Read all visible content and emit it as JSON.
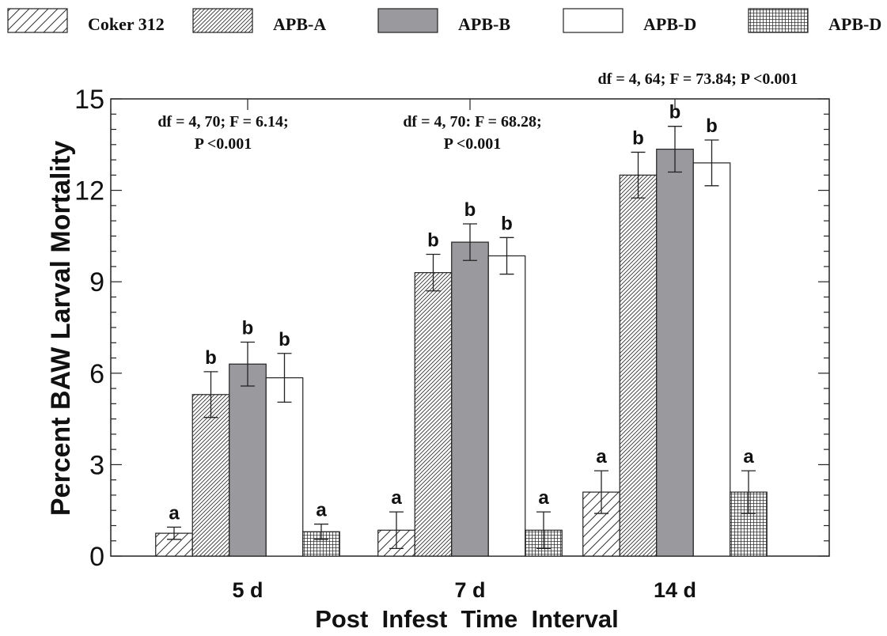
{
  "chart_data": {
    "type": "bar",
    "xlabel": "Post  Infest  Time  Interval",
    "ylabel": "Percent BAW Larval Mortality",
    "ylim": [
      0,
      15
    ],
    "yticks": [
      "0",
      "3",
      "6",
      "9",
      "12",
      "15"
    ],
    "grid": false,
    "legend_position": "top",
    "categories": [
      "5 d",
      "7 d",
      "14 d"
    ],
    "series": [
      {
        "name": "Coker 312",
        "pattern": "sparse-hatch",
        "values": [
          0.75,
          0.85,
          2.1
        ],
        "errors": [
          0.2,
          0.6,
          0.7
        ],
        "letters": [
          "a",
          "a",
          "a"
        ]
      },
      {
        "name": "APB-A",
        "pattern": "dense-hatch",
        "values": [
          5.3,
          9.3,
          12.5
        ],
        "errors": [
          0.75,
          0.6,
          0.75
        ],
        "letters": [
          "b",
          "b",
          "b"
        ]
      },
      {
        "name": "APB-B",
        "pattern": "solid",
        "color": "#9a9a9e",
        "values": [
          6.3,
          10.3,
          13.35
        ],
        "errors": [
          0.72,
          0.6,
          0.75
        ],
        "letters": [
          "b",
          "b",
          "b"
        ]
      },
      {
        "name": "APB-D",
        "pattern": "open",
        "values": [
          5.85,
          9.85,
          12.9
        ],
        "errors": [
          0.8,
          0.6,
          0.75
        ],
        "letters": [
          "b",
          "b",
          "b"
        ]
      },
      {
        "name": "APB-D",
        "pattern": "crosshatch",
        "values": [
          0.8,
          0.85,
          2.1
        ],
        "errors": [
          0.25,
          0.6,
          0.7
        ],
        "letters": [
          "a",
          "a",
          "a"
        ]
      }
    ],
    "annotations": [
      {
        "lines": [
          "df = 4, 70; F = 6.14;",
          "P <0.001"
        ]
      },
      {
        "lines": [
          "df = 4, 70: F = 68.28;",
          "P <0.001"
        ]
      },
      {
        "lines": [
          "df = 4, 64; F = 73.84; P <0.001"
        ]
      }
    ]
  }
}
